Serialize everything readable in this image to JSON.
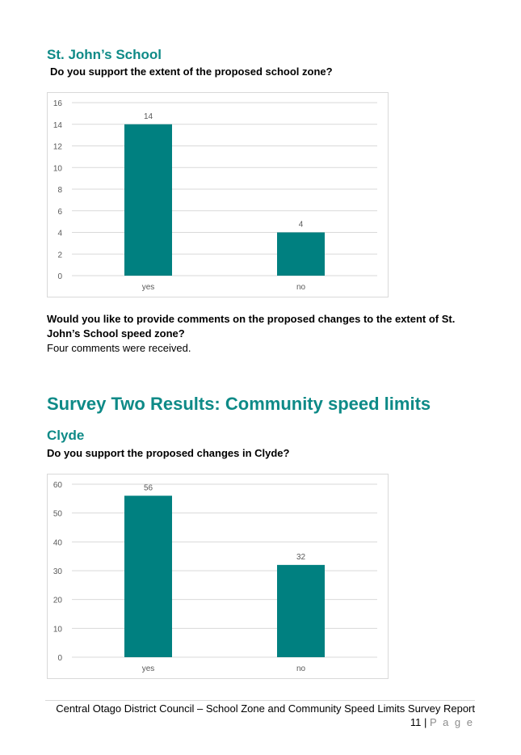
{
  "section1": {
    "title": "St. John’s School",
    "question": "Do you support the extent of the proposed school zone?",
    "comments_question": "Would you like to provide comments on the proposed changes to the extent of St. John’s School speed zone?",
    "comments_question_line1": "Would you like to provide comments on the proposed changes to the extent of St.",
    "comments_question_line2": "John’s School speed zone?",
    "comments_answer": "Four comments were received."
  },
  "section2": {
    "title": "Survey Two Results: Community speed limits",
    "subtitle": "Clyde",
    "question": "Do you support the proposed changes in Clyde?"
  },
  "footer": {
    "report_title": "Central Otago District Council – School Zone and Community Speed Limits Survey Report",
    "page_number": "11",
    "separator": "|",
    "page_label": "P a g e"
  },
  "colors": {
    "heading": "#0e8a87",
    "bar": "#008080",
    "grid": "#d9d9d9",
    "tick": "#595959"
  },
  "chart_data": [
    {
      "type": "bar",
      "categories": [
        "yes",
        "no"
      ],
      "values": [
        14,
        4
      ],
      "ylim": [
        0,
        16
      ],
      "yticks": [
        0,
        2,
        4,
        6,
        8,
        10,
        12,
        14,
        16
      ],
      "grid": true,
      "data_labels": true,
      "title": "",
      "xlabel": "",
      "ylabel": ""
    },
    {
      "type": "bar",
      "categories": [
        "yes",
        "no"
      ],
      "values": [
        56,
        32
      ],
      "ylim": [
        0,
        60
      ],
      "yticks": [
        0,
        10,
        20,
        30,
        40,
        50,
        60
      ],
      "grid": true,
      "data_labels": true,
      "title": "",
      "xlabel": "",
      "ylabel": ""
    }
  ]
}
